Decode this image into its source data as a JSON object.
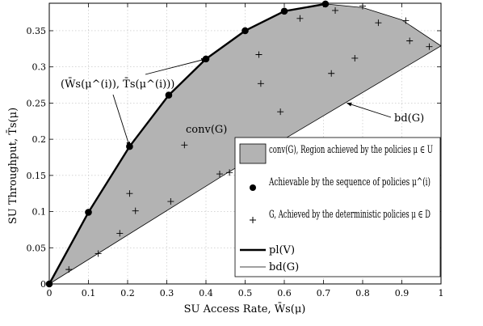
{
  "chart_data": {
    "type": "area",
    "xlabel": "SU Access Rate, W̄s(μ)",
    "ylabel": "SU Throughput, T̄s(μ)",
    "xlim": [
      0,
      1
    ],
    "ylim": [
      0,
      0.388
    ],
    "xticks": [
      0,
      0.1,
      0.2,
      0.3,
      0.4,
      0.5,
      0.6,
      0.7,
      0.8,
      0.9,
      1
    ],
    "xtick_labels": [
      "0",
      "0.1",
      "0.2",
      "0.3",
      "0.4",
      "0.5",
      "0.6",
      "0.7",
      "0.8",
      "0.9",
      "1"
    ],
    "yticks": [
      0,
      0.05,
      0.1,
      0.15,
      0.2,
      0.25,
      0.3,
      0.35
    ],
    "ytick_labels": [
      "0",
      "0.05",
      "0.1",
      "0.15",
      "0.2",
      "0.25",
      "0.3",
      "0.35"
    ],
    "grid": true,
    "legend_position": "bottom-right",
    "series": [
      {
        "name": "conv(G), Region achieved by the policies μ ∈ U",
        "kind": "region",
        "x": [
          0,
          0.1,
          0.205,
          0.305,
          0.4,
          0.5,
          0.6,
          0.705,
          0.8,
          0.9,
          1,
          0.45,
          0
        ],
        "y": [
          0,
          0.099,
          0.19,
          0.261,
          0.311,
          0.35,
          0.377,
          0.387,
          0.382,
          0.365,
          0.329,
          0.152,
          0
        ]
      },
      {
        "name": "Achievable by the sequence of policies μ^(i)",
        "kind": "points",
        "x": [
          0,
          0.1,
          0.205,
          0.305,
          0.4,
          0.5,
          0.6,
          0.705
        ],
        "y": [
          0,
          0.099,
          0.19,
          0.261,
          0.311,
          0.35,
          0.377,
          0.387
        ]
      },
      {
        "name": "G, Achieved by the deterministic policies μ ∈ D",
        "kind": "markers",
        "x": [
          0.05,
          0.125,
          0.18,
          0.205,
          0.22,
          0.31,
          0.345,
          0.435,
          0.46,
          0.535,
          0.54,
          0.59,
          0.64,
          0.72,
          0.73,
          0.78,
          0.8,
          0.84,
          0.91,
          0.92,
          0.97
        ],
        "y": [
          0.02,
          0.042,
          0.07,
          0.125,
          0.101,
          0.114,
          0.192,
          0.152,
          0.154,
          0.317,
          0.277,
          0.238,
          0.367,
          0.291,
          0.378,
          0.312,
          0.384,
          0.361,
          0.364,
          0.336,
          0.328
        ]
      },
      {
        "name": "pl(V)",
        "kind": "line",
        "x": [
          0,
          0.1,
          0.205,
          0.305,
          0.4,
          0.5,
          0.6,
          0.705
        ],
        "y": [
          0,
          0.099,
          0.19,
          0.261,
          0.311,
          0.35,
          0.377,
          0.387
        ]
      },
      {
        "name": "bd(G)",
        "kind": "line",
        "x": [
          0,
          0.45,
          1,
          0.9,
          0.8,
          0.705
        ],
        "y": [
          0,
          0.152,
          0.329,
          0.365,
          0.382,
          0.387
        ]
      }
    ],
    "annotations": [
      {
        "text": "(W̄s(μ^(i)), T̄s(μ^(i)))",
        "pointers": [
          {
            "x": 0.4,
            "y": 0.311
          },
          {
            "x": 0.205,
            "y": 0.19
          }
        ]
      },
      {
        "text": "conv(G)"
      },
      {
        "text": "bd(G)",
        "pointers": [
          {
            "x": 0.76,
            "y": 0.25
          }
        ]
      }
    ]
  },
  "colors": {
    "region_fill": "#b3b3b3",
    "line": "#000000",
    "grid": "#bdbdbd"
  }
}
